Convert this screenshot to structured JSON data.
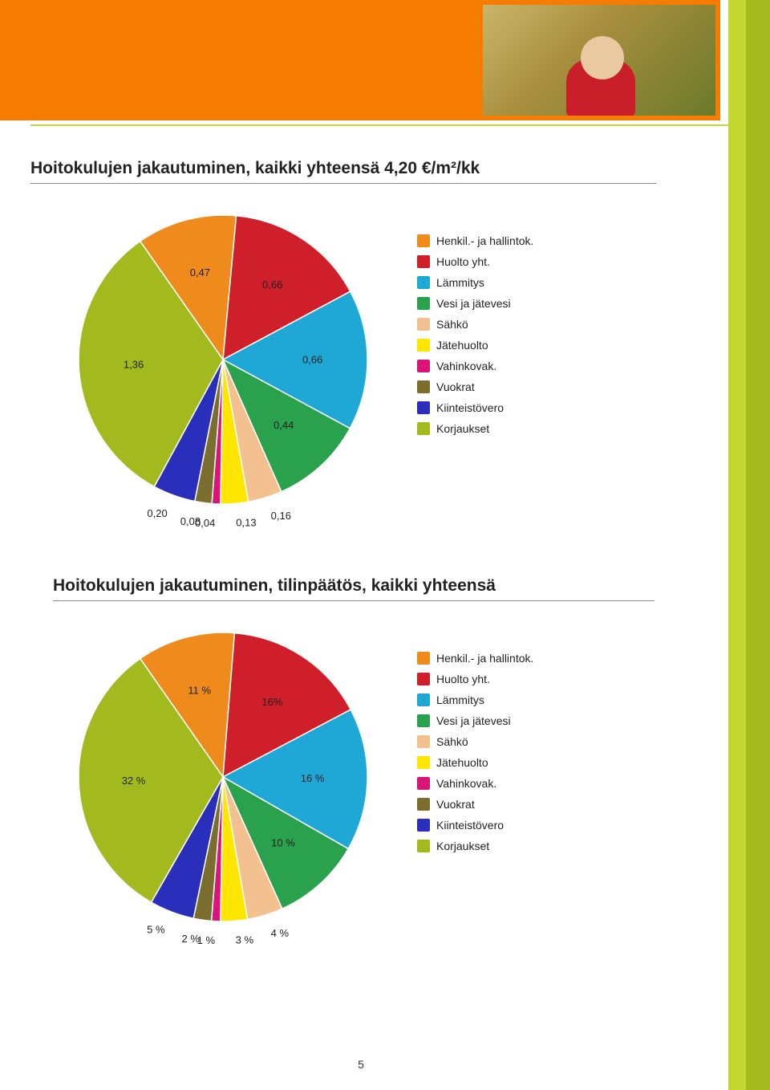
{
  "page_number": "5",
  "colors": {
    "accent_orange": "#f57c00",
    "lime": "#c3d730",
    "lime_dark": "#a2ba1e"
  },
  "legend_items": [
    {
      "label": "Henkil.- ja hallintok.",
      "color": "#ef8a1d"
    },
    {
      "label": "Huolto yht.",
      "color": "#cf1f2a"
    },
    {
      "label": "Lämmitys",
      "color": "#1fa7d6"
    },
    {
      "label": "Vesi ja jätevesi",
      "color": "#2aa14c"
    },
    {
      "label": "Sähkö",
      "color": "#f3c090"
    },
    {
      "label": "Jätehuolto",
      "color": "#ffe600"
    },
    {
      "label": "Vahinkovak.",
      "color": "#d9157a"
    },
    {
      "label": "Vuokrat",
      "color": "#7a6d2e"
    },
    {
      "label": "Kiinteistövero",
      "color": "#2a2fbb"
    },
    {
      "label": "Korjaukset",
      "color": "#a2ba1e"
    }
  ],
  "chart1": {
    "title": "Hoitokulujen jakautuminen, kaikki yhteensä 4,20 €/m²/kk",
    "type": "pie",
    "radius": 180,
    "slices": [
      {
        "key": "henkil",
        "value": 0.47,
        "label": "0,47",
        "color": "#ef8a1d"
      },
      {
        "key": "huolto",
        "value": 0.66,
        "label": "0,66",
        "color": "#cf1f2a"
      },
      {
        "key": "lammitys",
        "value": 0.66,
        "label": "0,66",
        "color": "#1fa7d6"
      },
      {
        "key": "vesi",
        "value": 0.44,
        "label": "0,44",
        "color": "#2aa14c"
      },
      {
        "key": "sahko",
        "value": 0.16,
        "label": "0,16",
        "color": "#f3c090"
      },
      {
        "key": "jate",
        "value": 0.13,
        "label": "0,13",
        "color": "#ffe600"
      },
      {
        "key": "vahinko",
        "value": 0.04,
        "label": "0,04",
        "color": "#d9157a"
      },
      {
        "key": "vuokrat",
        "value": 0.08,
        "label": "0,08",
        "color": "#7a6d2e"
      },
      {
        "key": "kiinteisto",
        "value": 0.2,
        "label": "0,20",
        "color": "#2a2fbb"
      },
      {
        "key": "korjaukset",
        "value": 1.36,
        "label": "1,36",
        "color": "#a2ba1e"
      }
    ],
    "start_angle_deg": -35
  },
  "chart2": {
    "title": "Hoitokulujen jakautuminen, tilinpäätös, kaikki yhteensä",
    "type": "pie",
    "radius": 180,
    "slices": [
      {
        "key": "henkil",
        "value": 11,
        "label": "11 %",
        "color": "#ef8a1d"
      },
      {
        "key": "huolto",
        "value": 16,
        "label": "16%",
        "color": "#cf1f2a"
      },
      {
        "key": "lammitys",
        "value": 16,
        "label": "16 %",
        "color": "#1fa7d6"
      },
      {
        "key": "vesi",
        "value": 10,
        "label": "10 %",
        "color": "#2aa14c"
      },
      {
        "key": "sahko",
        "value": 4,
        "label": "4 %",
        "color": "#f3c090"
      },
      {
        "key": "jate",
        "value": 3,
        "label": "3 %",
        "color": "#ffe600"
      },
      {
        "key": "vahinko",
        "value": 1,
        "label": "1 %",
        "color": "#d9157a"
      },
      {
        "key": "vuokrat",
        "value": 2,
        "label": "2 %",
        "color": "#7a6d2e"
      },
      {
        "key": "kiinteisto",
        "value": 5,
        "label": "5 %",
        "color": "#2a2fbb"
      },
      {
        "key": "korjaukset",
        "value": 32,
        "label": "32 %",
        "color": "#a2ba1e"
      }
    ],
    "start_angle_deg": -35
  }
}
